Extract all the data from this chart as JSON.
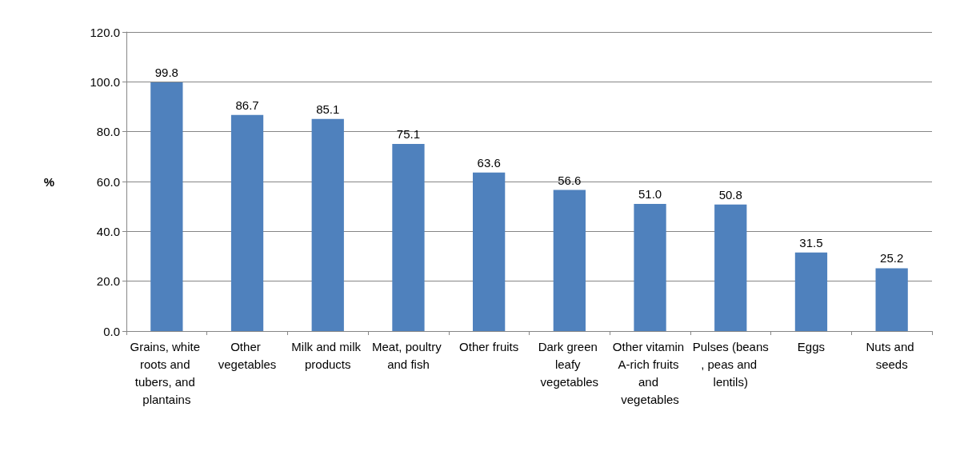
{
  "chart_data": {
    "type": "bar",
    "ylabel": "%",
    "categories": [
      "Grains, white roots and tubers, and plantains",
      "Other vegetables",
      "Milk and milk products",
      "Meat, poultry and fish",
      "Other fruits",
      "Dark green leafy vegetables",
      "Other vitamin A-rich fruits and vegetables",
      "Pulses (beans, peas and lentils)",
      "Eggs",
      "Nuts and seeds"
    ],
    "values": [
      99.8,
      86.7,
      85.1,
      75.1,
      63.6,
      56.6,
      51.0,
      50.8,
      31.5,
      25.2
    ],
    "value_labels": [
      "99.8",
      "86.7",
      "85.1",
      "75.1",
      "63.6",
      "56.6",
      "51.0",
      "50.8",
      "31.5",
      "25.2"
    ],
    "color": "#4f81bd",
    "ylim": [
      0,
      120
    ],
    "yticks": [
      {
        "value": 0,
        "label": "0.0"
      },
      {
        "value": 20,
        "label": "20.0"
      },
      {
        "value": 40,
        "label": "40.0"
      },
      {
        "value": 60,
        "label": "60.0"
      },
      {
        "value": 80,
        "label": "80.0"
      },
      {
        "value": 100,
        "label": "100.0"
      },
      {
        "value": 120,
        "label": "120.0"
      }
    ],
    "grid": "y"
  }
}
